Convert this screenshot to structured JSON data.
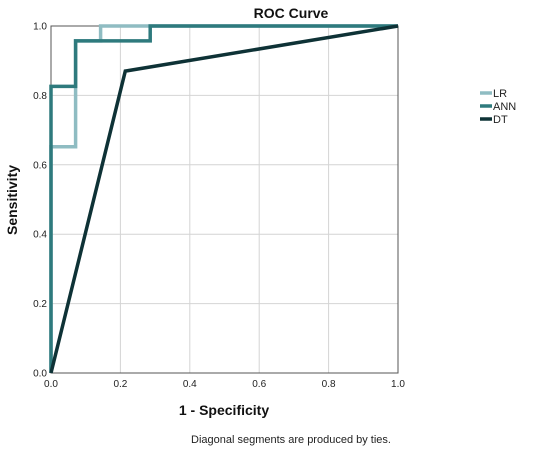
{
  "chart_data": {
    "type": "line",
    "title": "ROC Curve",
    "xlabel": "1 - Specificity",
    "ylabel": "Sensitivity",
    "footnote": "Diagonal segments are produced by ties.",
    "xlim": [
      0,
      1
    ],
    "ylim": [
      0,
      1
    ],
    "xticks": [
      "0.0",
      "0.2",
      "0.4",
      "0.6",
      "0.8",
      "1.0"
    ],
    "yticks": [
      "0.0",
      "0.2",
      "0.4",
      "0.6",
      "0.8",
      "1.0"
    ],
    "grid": true,
    "legend_position": "right",
    "series": [
      {
        "name": "LR",
        "color": "#8fbcc2",
        "x": [
          0,
          0,
          0.071,
          0.071,
          0.143,
          0.143,
          1.0
        ],
        "y": [
          0,
          0.652,
          0.652,
          0.957,
          0.957,
          1.0,
          1.0
        ]
      },
      {
        "name": "ANN",
        "color": "#2e7a7d",
        "x": [
          0,
          0,
          0.071,
          0.071,
          0.286,
          0.286,
          1.0
        ],
        "y": [
          0,
          0.826,
          0.826,
          0.957,
          0.957,
          1.0,
          1.0
        ]
      },
      {
        "name": "DT",
        "color": "#0e3236",
        "x": [
          0,
          0.214,
          1.0
        ],
        "y": [
          0,
          0.87,
          1.0
        ]
      }
    ]
  }
}
